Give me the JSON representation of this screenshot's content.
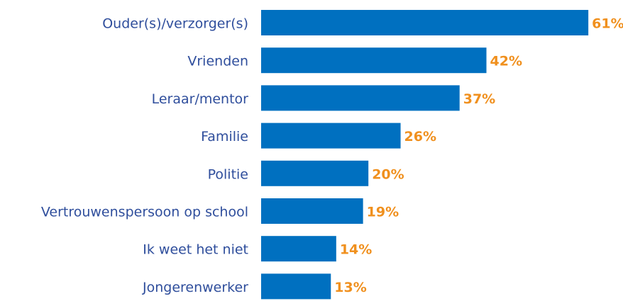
{
  "chart_data": {
    "type": "bar",
    "orientation": "horizontal",
    "color": "#0070c0",
    "categories": [
      "Ouder(s)/verzorger(s)",
      "Vrienden",
      "Leraar/mentor",
      "Familie",
      "Politie",
      "Vertrouwenspersoon op school",
      "Ik weet het niet",
      "Jongerenwerker"
    ],
    "values": [
      61,
      42,
      37,
      26,
      20,
      19,
      14,
      13
    ],
    "value_labels": [
      "61%",
      "42%",
      "37%",
      "26%",
      "20%",
      "19%",
      "14%",
      "13%"
    ]
  }
}
